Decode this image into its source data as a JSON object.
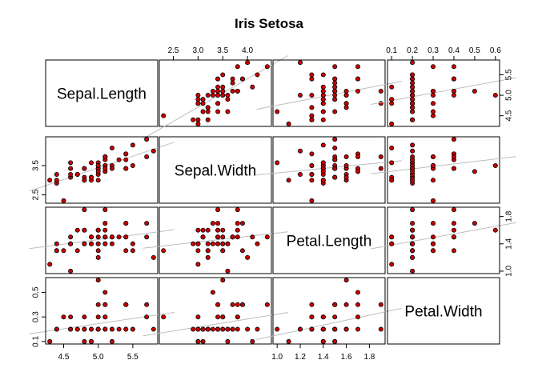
{
  "chart_data": {
    "type": "scatter",
    "title": "Iris Setosa",
    "point_color": "#cc0000",
    "line_color": "#bebebe",
    "variables": [
      "Sepal.Length",
      "Sepal.Width",
      "Petal.Length",
      "Petal.Width"
    ],
    "ranges": {
      "Sepal.Length": [
        4.3,
        5.8
      ],
      "Sepal.Width": [
        2.3,
        4.4
      ],
      "Petal.Length": [
        1.0,
        1.9
      ],
      "Petal.Width": [
        0.1,
        0.6
      ]
    },
    "ticks": {
      "Sepal.Length": [
        4.5,
        5.0,
        5.5
      ],
      "Sepal.Width": [
        2.5,
        3.0,
        3.5,
        4.0
      ],
      "Petal.Length": [
        1.0,
        1.2,
        1.4,
        1.6,
        1.8
      ],
      "Petal.Width": [
        0.1,
        0.2,
        0.3,
        0.4,
        0.5,
        0.6
      ]
    },
    "tick_labels": {
      "Sepal.Length": [
        "4.5",
        "5.0",
        "5.5"
      ],
      "Sepal.Width": [
        "2.5",
        "3.0",
        "3.5",
        "4.0"
      ],
      "Petal.Length": [
        "1.0",
        "1.2",
        "1.4",
        "1.6",
        "1.8"
      ],
      "Petal.Width": [
        "0.1",
        "0.2",
        "0.3",
        "0.4",
        "0.5",
        "0.6"
      ]
    },
    "tick_labels_alt": {
      "Sepal.Length": [
        "4.5",
        "5.0",
        "5.5"
      ],
      "Sepal.Width": [
        "2.5",
        "3.5"
      ],
      "Petal.Length": [
        "1.0",
        "1.4",
        "1.8"
      ],
      "Petal.Width": [
        "0.1",
        "0.3",
        "0.5"
      ]
    },
    "ticks_alt": {
      "Sepal.Length": [
        4.5,
        5.0,
        5.5
      ],
      "Sepal.Width": [
        2.5,
        3.5
      ],
      "Petal.Length": [
        1.0,
        1.4,
        1.8
      ],
      "Petal.Width": [
        0.1,
        0.3,
        0.5
      ]
    },
    "data": [
      [
        5.1,
        3.5,
        1.4,
        0.2
      ],
      [
        4.9,
        3.0,
        1.4,
        0.2
      ],
      [
        4.7,
        3.2,
        1.3,
        0.2
      ],
      [
        4.6,
        3.1,
        1.5,
        0.2
      ],
      [
        5.0,
        3.6,
        1.4,
        0.2
      ],
      [
        5.4,
        3.9,
        1.7,
        0.4
      ],
      [
        4.6,
        3.4,
        1.4,
        0.3
      ],
      [
        5.0,
        3.4,
        1.5,
        0.2
      ],
      [
        4.4,
        2.9,
        1.4,
        0.2
      ],
      [
        4.9,
        3.1,
        1.5,
        0.1
      ],
      [
        5.4,
        3.7,
        1.5,
        0.2
      ],
      [
        4.8,
        3.4,
        1.6,
        0.2
      ],
      [
        4.8,
        3.0,
        1.4,
        0.1
      ],
      [
        4.3,
        3.0,
        1.1,
        0.1
      ],
      [
        5.8,
        4.0,
        1.2,
        0.2
      ],
      [
        5.7,
        4.4,
        1.5,
        0.4
      ],
      [
        5.4,
        3.9,
        1.3,
        0.4
      ],
      [
        5.1,
        3.5,
        1.4,
        0.3
      ],
      [
        5.7,
        3.8,
        1.7,
        0.3
      ],
      [
        5.1,
        3.8,
        1.5,
        0.3
      ],
      [
        5.4,
        3.4,
        1.7,
        0.2
      ],
      [
        5.1,
        3.7,
        1.5,
        0.4
      ],
      [
        4.6,
        3.6,
        1.0,
        0.2
      ],
      [
        5.1,
        3.3,
        1.7,
        0.5
      ],
      [
        4.8,
        3.4,
        1.9,
        0.2
      ],
      [
        5.0,
        3.0,
        1.6,
        0.2
      ],
      [
        5.0,
        3.4,
        1.6,
        0.4
      ],
      [
        5.2,
        3.5,
        1.5,
        0.2
      ],
      [
        5.2,
        3.4,
        1.4,
        0.2
      ],
      [
        4.7,
        3.2,
        1.6,
        0.2
      ],
      [
        4.8,
        3.1,
        1.6,
        0.2
      ],
      [
        5.4,
        3.4,
        1.5,
        0.4
      ],
      [
        5.2,
        4.1,
        1.5,
        0.1
      ],
      [
        5.5,
        4.2,
        1.4,
        0.2
      ],
      [
        4.9,
        3.1,
        1.5,
        0.2
      ],
      [
        5.0,
        3.2,
        1.2,
        0.2
      ],
      [
        5.5,
        3.5,
        1.3,
        0.2
      ],
      [
        4.9,
        3.6,
        1.4,
        0.1
      ],
      [
        4.4,
        3.0,
        1.3,
        0.2
      ],
      [
        5.1,
        3.4,
        1.5,
        0.2
      ],
      [
        5.0,
        3.5,
        1.3,
        0.3
      ],
      [
        4.5,
        2.3,
        1.3,
        0.3
      ],
      [
        4.4,
        3.2,
        1.3,
        0.2
      ],
      [
        5.0,
        3.5,
        1.6,
        0.6
      ],
      [
        5.1,
        3.8,
        1.9,
        0.4
      ],
      [
        4.8,
        3.0,
        1.4,
        0.3
      ],
      [
        5.1,
        3.8,
        1.6,
        0.2
      ],
      [
        4.6,
        3.2,
        1.4,
        0.2
      ],
      [
        5.3,
        3.7,
        1.5,
        0.2
      ],
      [
        5.0,
        3.3,
        1.4,
        0.2
      ]
    ]
  }
}
